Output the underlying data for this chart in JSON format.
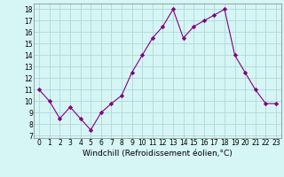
{
  "x": [
    0,
    1,
    2,
    3,
    4,
    5,
    6,
    7,
    8,
    9,
    10,
    11,
    12,
    13,
    14,
    15,
    16,
    17,
    18,
    19,
    20,
    21,
    22,
    23
  ],
  "y": [
    11,
    10,
    8.5,
    9.5,
    8.5,
    7.5,
    9,
    9.8,
    10.5,
    12.5,
    14,
    15.5,
    16.5,
    18,
    15.5,
    16.5,
    17,
    17.5,
    18,
    14,
    12.5,
    11,
    9.8,
    9.8
  ],
  "line_color": "#800080",
  "marker": "D",
  "marker_size": 2.2,
  "bg_color": "#d6f5f5",
  "grid_color": "#b0d8d8",
  "xlabel": "Windchill (Refroidissement éolien,°C)",
  "xlabel_fontsize": 6.5,
  "tick_fontsize": 5.5,
  "yticks": [
    7,
    8,
    9,
    10,
    11,
    12,
    13,
    14,
    15,
    16,
    17,
    18
  ],
  "xticks": [
    0,
    1,
    2,
    3,
    4,
    5,
    6,
    7,
    8,
    9,
    10,
    11,
    12,
    13,
    14,
    15,
    16,
    17,
    18,
    19,
    20,
    21,
    22,
    23
  ],
  "ylim": [
    6.8,
    18.5
  ],
  "xlim": [
    -0.5,
    23.5
  ]
}
